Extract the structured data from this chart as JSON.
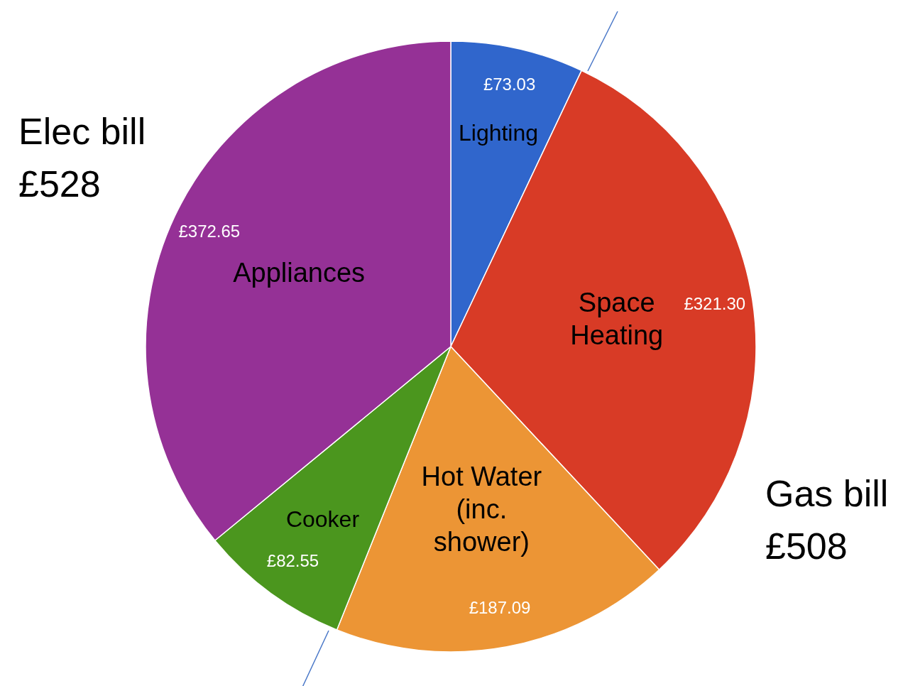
{
  "chart_data": {
    "type": "pie",
    "categories": [
      "Lighting",
      "Space Heating",
      "Hot Water (inc. shower)",
      "Cooker",
      "Appliances"
    ],
    "values": [
      73.03,
      321.3,
      187.09,
      82.55,
      372.65
    ],
    "value_labels": [
      "£73.03",
      "£321.30",
      "£187.09",
      "£82.55",
      "£372.65"
    ],
    "colors": [
      "#3066cc",
      "#d83b26",
      "#ec9535",
      "#4b961e",
      "#953196"
    ],
    "annotations": [
      "Elec bill £528",
      "Gas bill £508"
    ],
    "legend": false
  }
}
